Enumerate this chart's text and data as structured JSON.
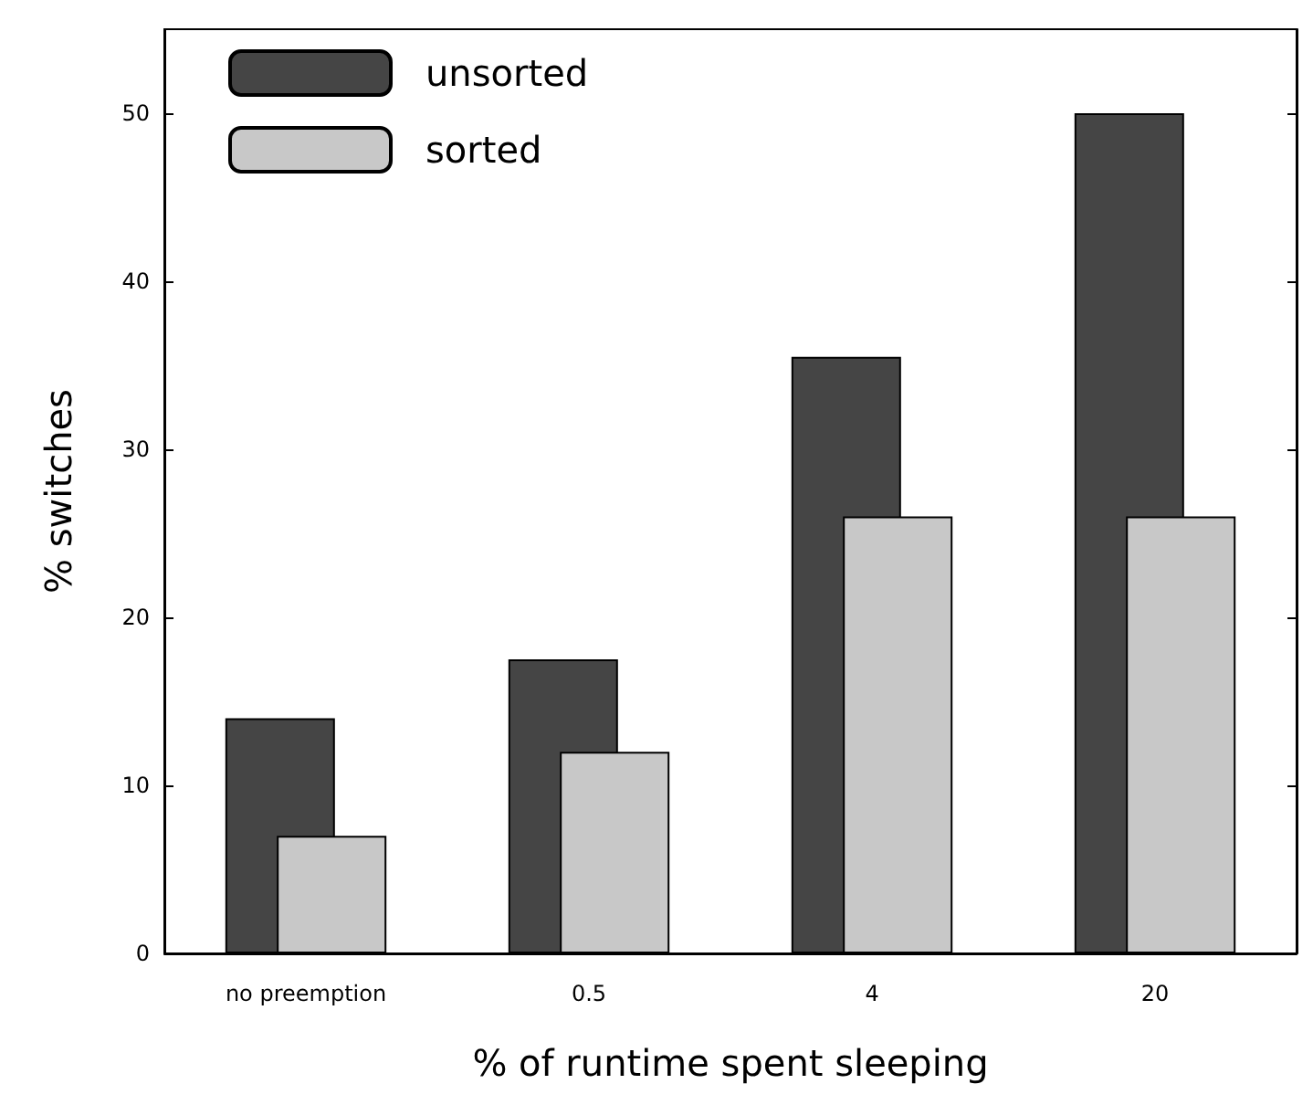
{
  "chart_data": {
    "type": "bar",
    "xlabel": "% of runtime spent sleeping",
    "ylabel": "% switches",
    "categories": [
      "no preemption",
      "0.5",
      "4",
      "20"
    ],
    "series": [
      {
        "name": "unsorted",
        "color": "#454545",
        "values": [
          14,
          17.5,
          35.5,
          50
        ]
      },
      {
        "name": "sorted",
        "color": "#c8c8c8",
        "values": [
          7,
          12,
          26,
          26
        ]
      }
    ],
    "ylim": [
      0,
      55
    ],
    "yticks": [
      0,
      10,
      20,
      30,
      40,
      50
    ],
    "grid": false,
    "legend": "top left"
  }
}
